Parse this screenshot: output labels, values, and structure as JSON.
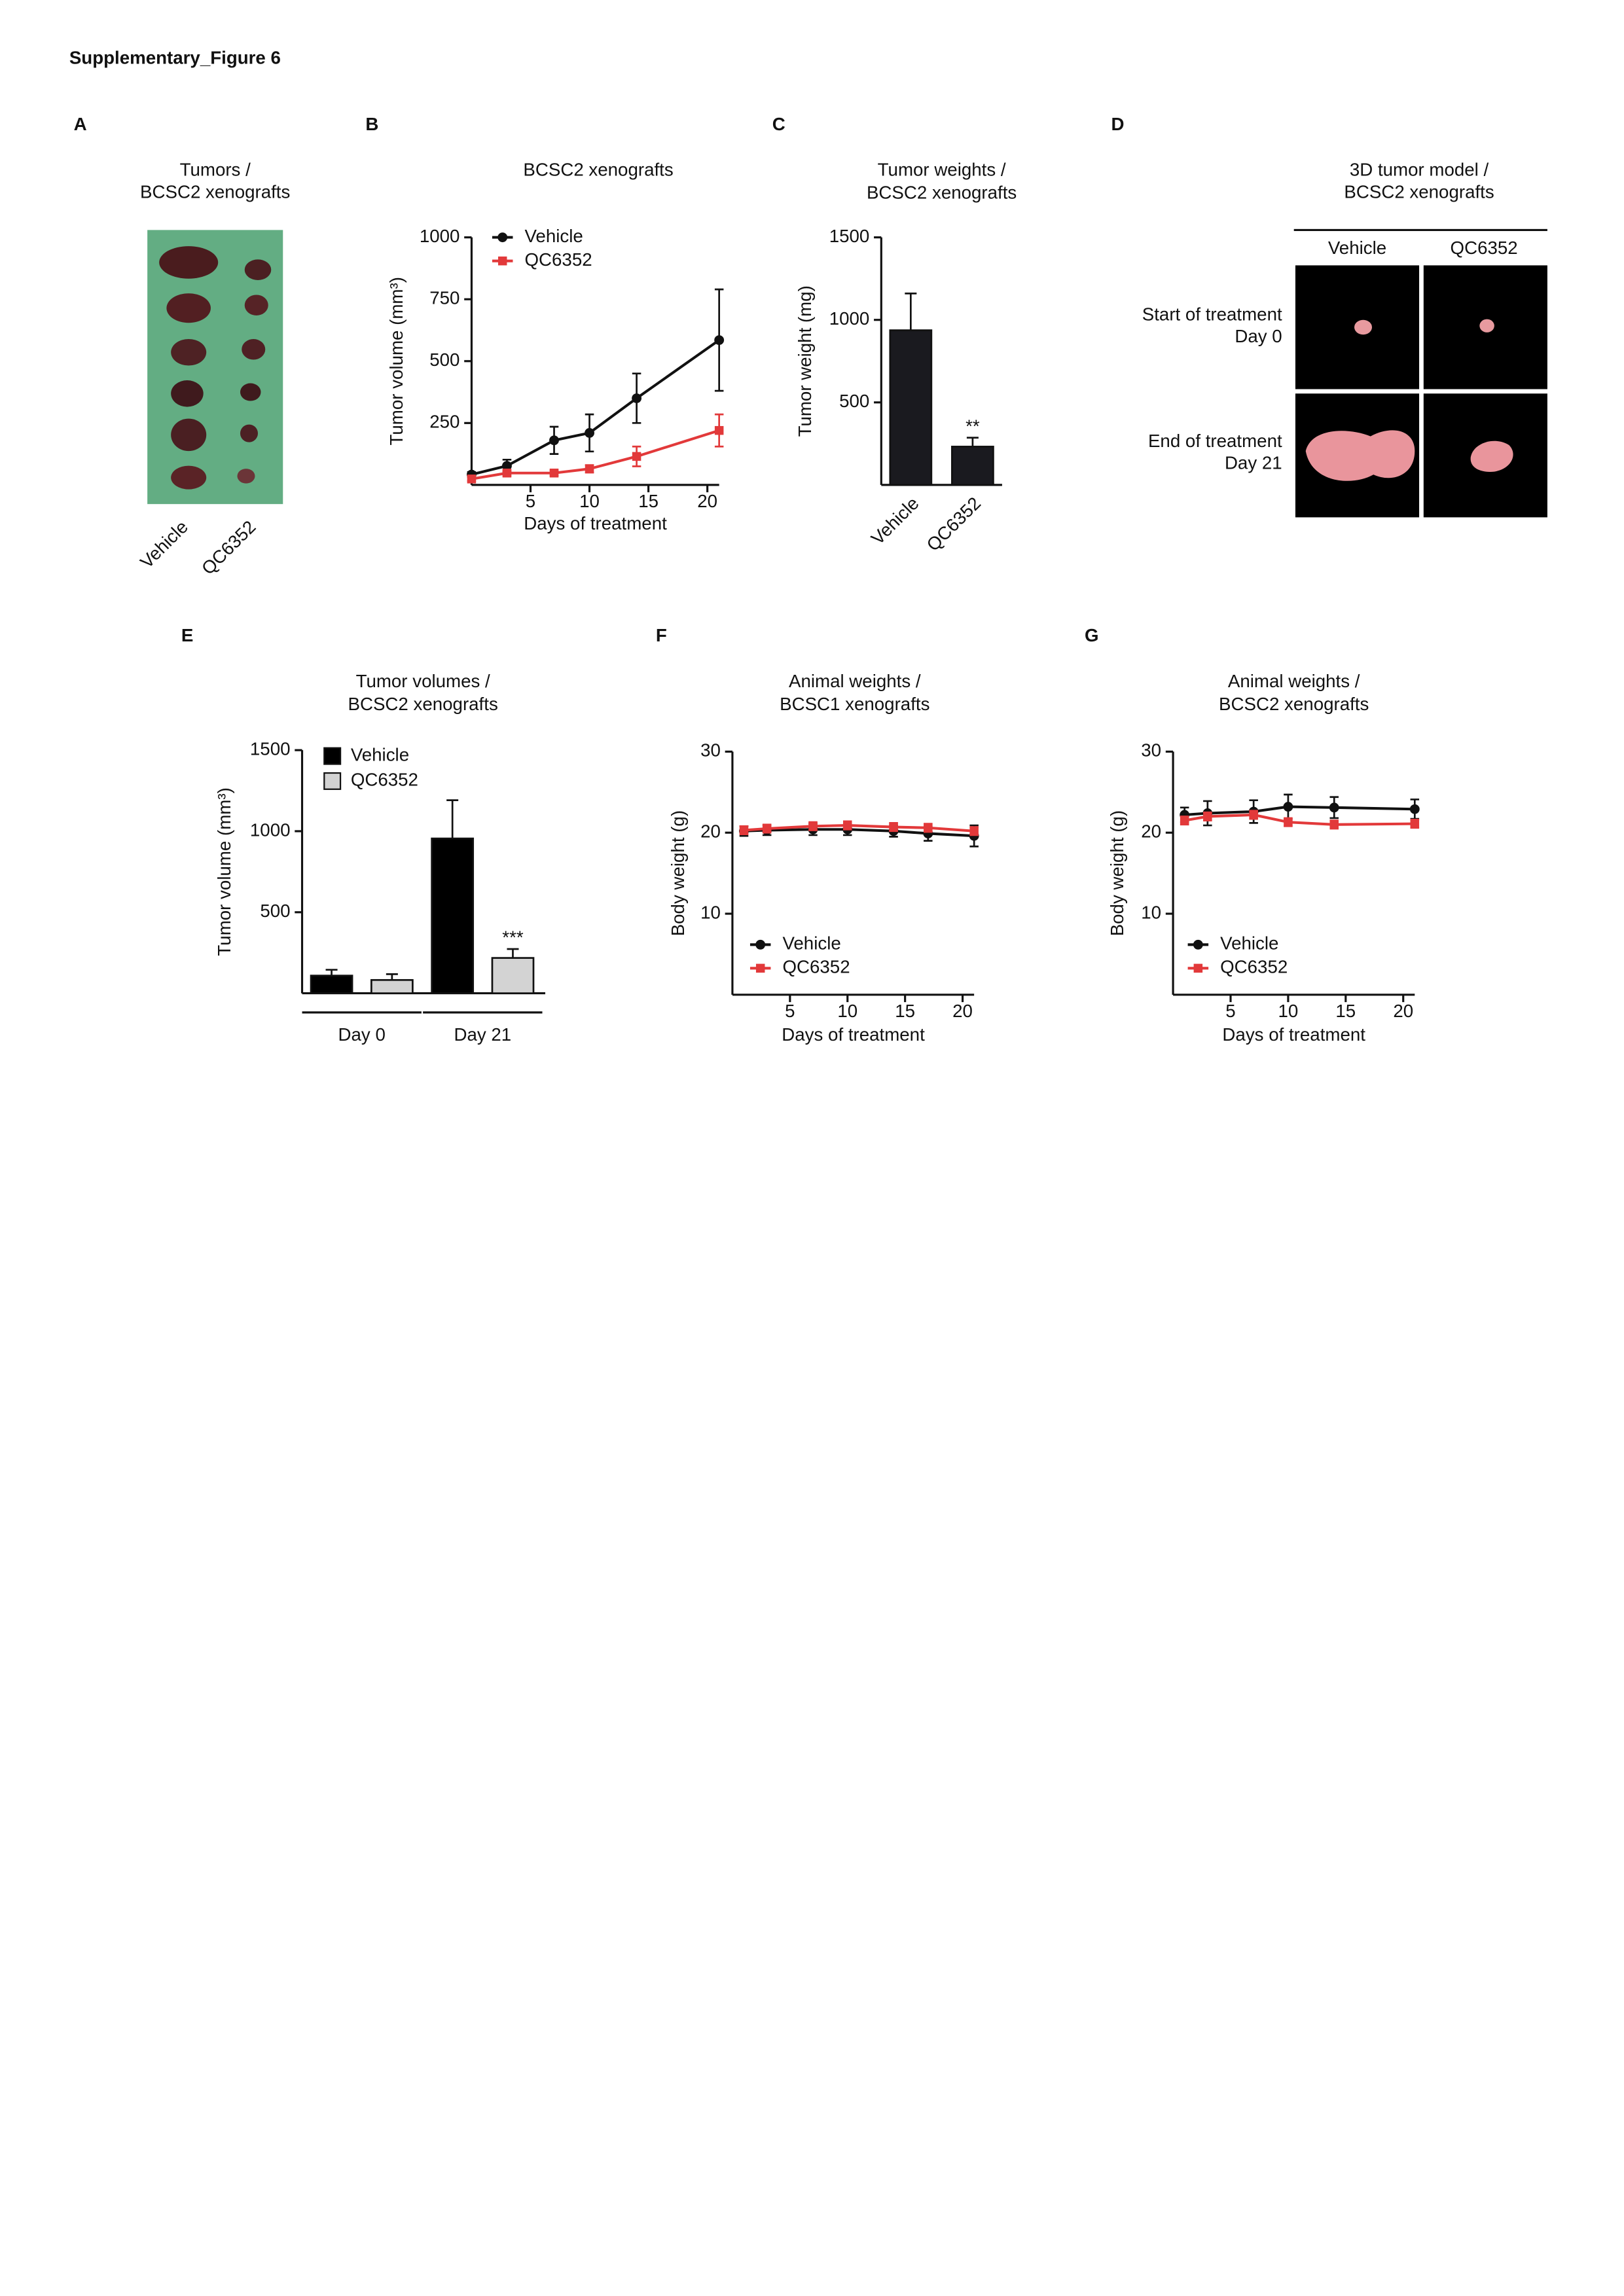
{
  "title": "Supplementary_Figure 6",
  "panel_a": {
    "panel": "A",
    "title": [
      "Tumors /",
      "BCSC2 xenografts"
    ],
    "labels": [
      "Vehicle",
      "QC6352"
    ]
  },
  "chart_data": [
    {
      "panel": "B",
      "type": "line",
      "title": [
        "BCSC2 xenografts"
      ],
      "x_label": "Days of treatment",
      "y_label": "Tumor volume (mm³)",
      "x": [
        0,
        3,
        7,
        10,
        14,
        21
      ],
      "xlim": [
        0,
        21
      ],
      "xticks": [
        5,
        10,
        15,
        20
      ],
      "ylim": [
        0,
        1000
      ],
      "yticks": [
        250,
        500,
        750,
        1000
      ],
      "series": [
        {
          "name": "Vehicle",
          "color": "#111111",
          "marker": "circle",
          "values": [
            42,
            77,
            180,
            210,
            350,
            585
          ],
          "errors": [
            10,
            25,
            55,
            75,
            100,
            205
          ]
        },
        {
          "name": "QC6352",
          "color": "#e2393a",
          "marker": "square",
          "values": [
            24,
            48,
            48,
            65,
            115,
            220
          ],
          "errors": [
            8,
            10,
            10,
            15,
            40,
            65
          ]
        }
      ]
    },
    {
      "panel": "C",
      "type": "bar",
      "title": [
        "Tumor weights /",
        "BCSC2 xenografts"
      ],
      "y_label": "Tumor weight (mg)",
      "categories": [
        "Vehicle",
        "QC6352"
      ],
      "ylim": [
        0,
        1500
      ],
      "yticks": [
        500,
        1000,
        1500
      ],
      "series": [
        {
          "color": "#1a1a1f",
          "values": [
            937,
            232
          ],
          "errors": [
            223,
            54
          ],
          "annotations": [
            null,
            "**"
          ]
        }
      ]
    },
    {
      "panel": "E",
      "type": "grouped_bar",
      "title": [
        "Tumor volumes /",
        "BCSC2 xenografts"
      ],
      "y_label": "Tumor volume (mm³)",
      "categories": [
        "Day 0",
        "Day 21"
      ],
      "ylim": [
        0,
        1500
      ],
      "yticks": [
        500,
        1000,
        1500
      ],
      "series": [
        {
          "name": "Vehicle",
          "color": "#000000",
          "values": [
            109,
            955
          ],
          "errors": [
            36,
            236
          ],
          "annotations": [
            null,
            null
          ]
        },
        {
          "name": "QC6352",
          "color": "#d3d3d3",
          "values": [
            82,
            218
          ],
          "errors": [
            36,
            55
          ],
          "annotations": [
            null,
            "***"
          ]
        }
      ]
    },
    {
      "panel": "F",
      "type": "line",
      "title": [
        "Animal weights /",
        "BCSC1 xenografts"
      ],
      "x_label": "Days of treatment",
      "y_label": "Body weight (g)",
      "x": [
        1,
        3,
        7,
        10,
        14,
        17,
        21
      ],
      "xlim": [
        0,
        21
      ],
      "xticks": [
        5,
        10,
        15,
        20
      ],
      "ylim": [
        0,
        30
      ],
      "yticks": [
        10,
        20,
        30
      ],
      "series": [
        {
          "name": "Vehicle",
          "color": "#111111",
          "marker": "circle",
          "values": [
            20.2,
            20.3,
            20.4,
            20.4,
            20.2,
            19.9,
            19.6
          ],
          "errors": [
            0.6,
            0.6,
            0.7,
            0.7,
            0.7,
            0.9,
            1.3
          ]
        },
        {
          "name": "QC6352",
          "color": "#e2393a",
          "marker": "square",
          "values": [
            20.3,
            20.5,
            20.8,
            20.9,
            20.7,
            20.6,
            20.2
          ],
          "errors": [
            0.5,
            0.5,
            0.5,
            0.5,
            0.5,
            0.5,
            0.5
          ]
        }
      ]
    },
    {
      "panel": "G",
      "type": "line",
      "title": [
        "Animal weights /",
        "BCSC2 xenografts"
      ],
      "x_label": "Days of treatment",
      "y_label": "Body weight (g)",
      "x": [
        1,
        3,
        7,
        10,
        14,
        21
      ],
      "xlim": [
        0,
        21
      ],
      "xticks": [
        5,
        10,
        15,
        20
      ],
      "ylim": [
        0,
        30
      ],
      "yticks": [
        10,
        20,
        30
      ],
      "series": [
        {
          "name": "Vehicle",
          "color": "#111111",
          "marker": "circle",
          "values": [
            22.2,
            22.4,
            22.6,
            23.2,
            23.1,
            22.9
          ],
          "errors": [
            0.9,
            1.5,
            1.4,
            1.5,
            1.3,
            1.2
          ]
        },
        {
          "name": "QC6352",
          "color": "#e2393a",
          "marker": "square",
          "values": [
            21.5,
            22.0,
            22.2,
            21.3,
            21.0,
            21.1
          ],
          "errors": [
            0.5,
            0.5,
            0.5,
            0.5,
            0.5,
            0.5
          ]
        }
      ]
    }
  ],
  "panel_d": {
    "panel": "D",
    "title": [
      "3D tumor model /",
      "BCSC2 xenografts"
    ],
    "columns": [
      "Vehicle",
      "QC6352"
    ],
    "rows": [
      [
        "Start of treatment",
        "Day 0"
      ],
      [
        "End of treatment",
        "Day 21"
      ]
    ]
  }
}
